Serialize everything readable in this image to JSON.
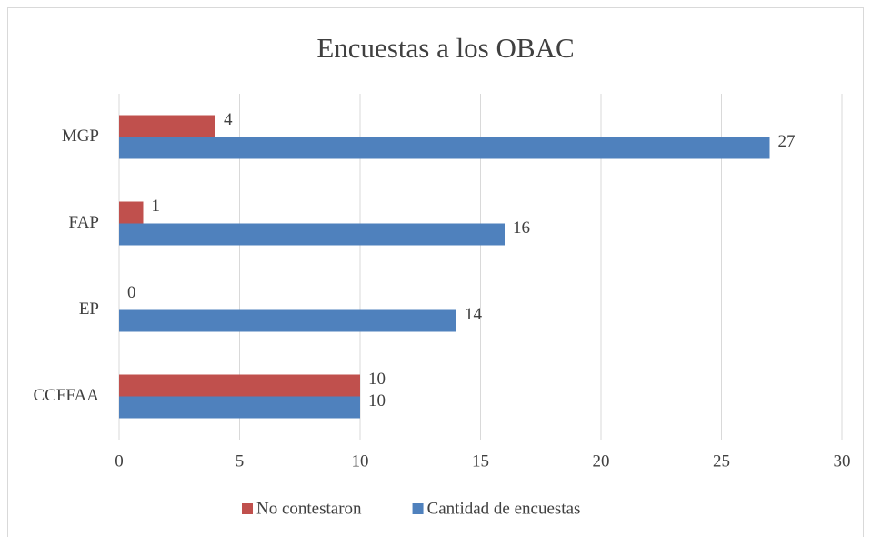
{
  "chart_data": {
    "type": "hbar",
    "title": "Encuestas a los OBAC",
    "categories": [
      "MGP",
      "FAP",
      "EP",
      "CCFFAA"
    ],
    "series": [
      {
        "name": "No contestaron",
        "color": "#c0504d",
        "values": [
          4,
          1,
          0,
          10
        ]
      },
      {
        "name": "Cantidad de encuestas",
        "color": "#4f81bd",
        "values": [
          27,
          16,
          14,
          10
        ]
      }
    ],
    "xlim": [
      0,
      30
    ],
    "xticks": [
      0,
      5,
      10,
      15,
      20,
      25,
      30
    ],
    "grid": true,
    "legend": "bottom"
  }
}
